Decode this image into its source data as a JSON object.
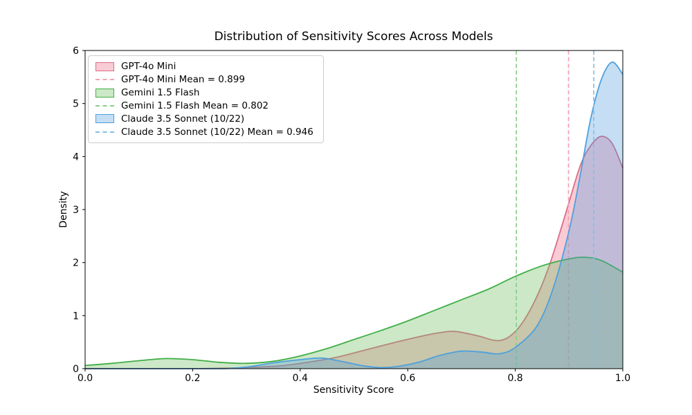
{
  "chart_data": {
    "type": "area",
    "kind": "kde-density",
    "title": "Distribution of Sensitivity Scores Across Models",
    "xlabel": "Sensitivity Score",
    "ylabel": "Density",
    "xlim": [
      0.0,
      1.0
    ],
    "ylim": [
      0,
      6
    ],
    "xticks": [
      "0.0",
      "0.2",
      "0.4",
      "0.6",
      "0.8",
      "1.0"
    ],
    "yticks": [
      "0",
      "1",
      "2",
      "3",
      "4",
      "5",
      "6"
    ],
    "grid": false,
    "legend_position": "upper-left",
    "axis_color": "#000000",
    "series": [
      {
        "name": "GPT-4o Mini",
        "mean": 0.899,
        "mean_label": "GPT-4o Mini Mean = 0.899",
        "line_color": "#dc6b88",
        "fill_color": "rgba(233,70,105,0.28)",
        "mean_line_color": "#f3a2b2",
        "points": [
          [
            0.0,
            0.0
          ],
          [
            0.1,
            0.0
          ],
          [
            0.2,
            0.0
          ],
          [
            0.27,
            0.01
          ],
          [
            0.32,
            0.03
          ],
          [
            0.37,
            0.06
          ],
          [
            0.42,
            0.13
          ],
          [
            0.47,
            0.22
          ],
          [
            0.52,
            0.35
          ],
          [
            0.57,
            0.48
          ],
          [
            0.62,
            0.6
          ],
          [
            0.66,
            0.68
          ],
          [
            0.69,
            0.7
          ],
          [
            0.73,
            0.62
          ],
          [
            0.77,
            0.53
          ],
          [
            0.8,
            0.7
          ],
          [
            0.83,
            1.15
          ],
          [
            0.86,
            1.85
          ],
          [
            0.89,
            2.8
          ],
          [
            0.92,
            3.8
          ],
          [
            0.94,
            4.2
          ],
          [
            0.96,
            4.38
          ],
          [
            0.98,
            4.25
          ],
          [
            1.0,
            3.78
          ]
        ]
      },
      {
        "name": "Gemini 1.5 Flash",
        "mean": 0.802,
        "mean_label": "Gemini 1.5 Flash Mean = 0.802",
        "line_color": "#3fae46",
        "fill_color": "rgba(110,190,95,0.35)",
        "mean_line_color": "#8ccd8c",
        "points": [
          [
            0.0,
            0.06
          ],
          [
            0.05,
            0.1
          ],
          [
            0.1,
            0.15
          ],
          [
            0.15,
            0.19
          ],
          [
            0.2,
            0.17
          ],
          [
            0.25,
            0.12
          ],
          [
            0.3,
            0.1
          ],
          [
            0.35,
            0.14
          ],
          [
            0.4,
            0.24
          ],
          [
            0.45,
            0.38
          ],
          [
            0.5,
            0.55
          ],
          [
            0.55,
            0.72
          ],
          [
            0.6,
            0.9
          ],
          [
            0.65,
            1.1
          ],
          [
            0.7,
            1.3
          ],
          [
            0.75,
            1.5
          ],
          [
            0.8,
            1.74
          ],
          [
            0.85,
            1.94
          ],
          [
            0.9,
            2.07
          ],
          [
            0.93,
            2.1
          ],
          [
            0.96,
            2.04
          ],
          [
            1.0,
            1.82
          ]
        ]
      },
      {
        "name": "Claude 3.5 Sonnet (10/22)",
        "mean": 0.946,
        "mean_label": "Claude 3.5 Sonnet (10/22) Mean = 0.946",
        "line_color": "#4da0dc",
        "fill_color": "rgba(80,155,220,0.33)",
        "mean_line_color": "#82beea",
        "points": [
          [
            0.0,
            0.0
          ],
          [
            0.1,
            0.0
          ],
          [
            0.2,
            0.0
          ],
          [
            0.26,
            0.0
          ],
          [
            0.3,
            0.03
          ],
          [
            0.35,
            0.11
          ],
          [
            0.4,
            0.17
          ],
          [
            0.44,
            0.2
          ],
          [
            0.48,
            0.13
          ],
          [
            0.52,
            0.05
          ],
          [
            0.55,
            0.02
          ],
          [
            0.58,
            0.04
          ],
          [
            0.62,
            0.12
          ],
          [
            0.66,
            0.25
          ],
          [
            0.7,
            0.33
          ],
          [
            0.74,
            0.31
          ],
          [
            0.77,
            0.28
          ],
          [
            0.8,
            0.4
          ],
          [
            0.84,
            0.8
          ],
          [
            0.87,
            1.5
          ],
          [
            0.9,
            2.6
          ],
          [
            0.92,
            3.6
          ],
          [
            0.94,
            4.7
          ],
          [
            0.96,
            5.45
          ],
          [
            0.98,
            5.78
          ],
          [
            1.0,
            5.55
          ]
        ]
      }
    ]
  }
}
